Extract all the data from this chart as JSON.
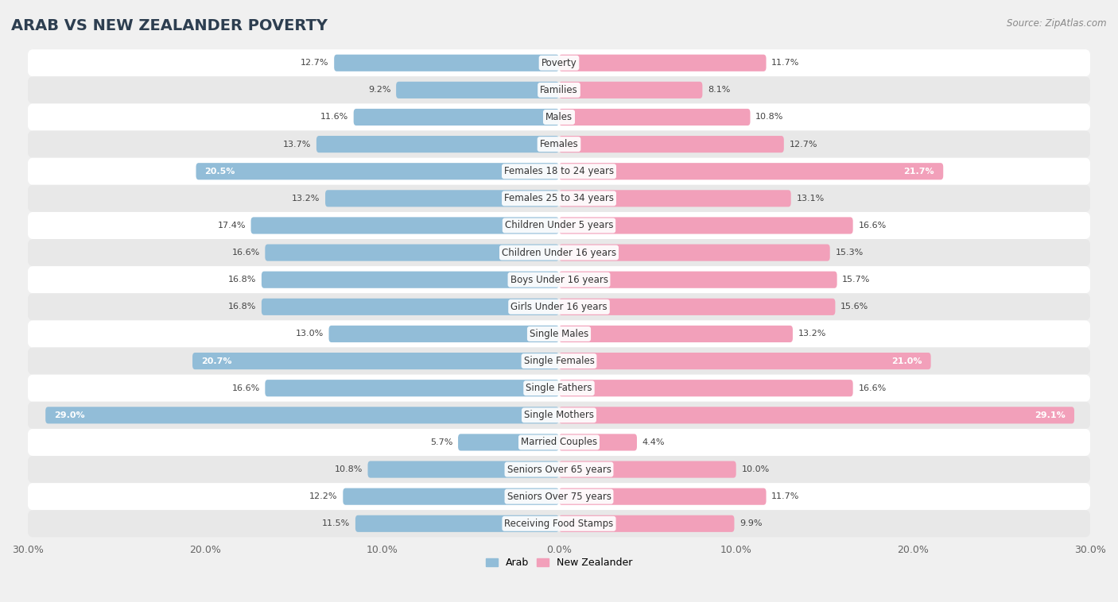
{
  "title": "ARAB VS NEW ZEALANDER POVERTY",
  "source": "Source: ZipAtlas.com",
  "categories": [
    "Poverty",
    "Families",
    "Males",
    "Females",
    "Females 18 to 24 years",
    "Females 25 to 34 years",
    "Children Under 5 years",
    "Children Under 16 years",
    "Boys Under 16 years",
    "Girls Under 16 years",
    "Single Males",
    "Single Females",
    "Single Fathers",
    "Single Mothers",
    "Married Couples",
    "Seniors Over 65 years",
    "Seniors Over 75 years",
    "Receiving Food Stamps"
  ],
  "arab_values": [
    12.7,
    9.2,
    11.6,
    13.7,
    20.5,
    13.2,
    17.4,
    16.6,
    16.8,
    16.8,
    13.0,
    20.7,
    16.6,
    29.0,
    5.7,
    10.8,
    12.2,
    11.5
  ],
  "nz_values": [
    11.7,
    8.1,
    10.8,
    12.7,
    21.7,
    13.1,
    16.6,
    15.3,
    15.7,
    15.6,
    13.2,
    21.0,
    16.6,
    29.1,
    4.4,
    10.0,
    11.7,
    9.9
  ],
  "arab_color": "#92bdd8",
  "nz_color": "#f2a0ba",
  "arab_label": "Arab",
  "nz_label": "New Zealander",
  "xlim": 30.0,
  "bg_color": "#f0f0f0",
  "row_bg_light": "#ffffff",
  "row_bg_dark": "#e8e8e8",
  "title_fontsize": 14,
  "label_fontsize": 8.5,
  "value_fontsize": 8,
  "axis_label_fontsize": 9
}
